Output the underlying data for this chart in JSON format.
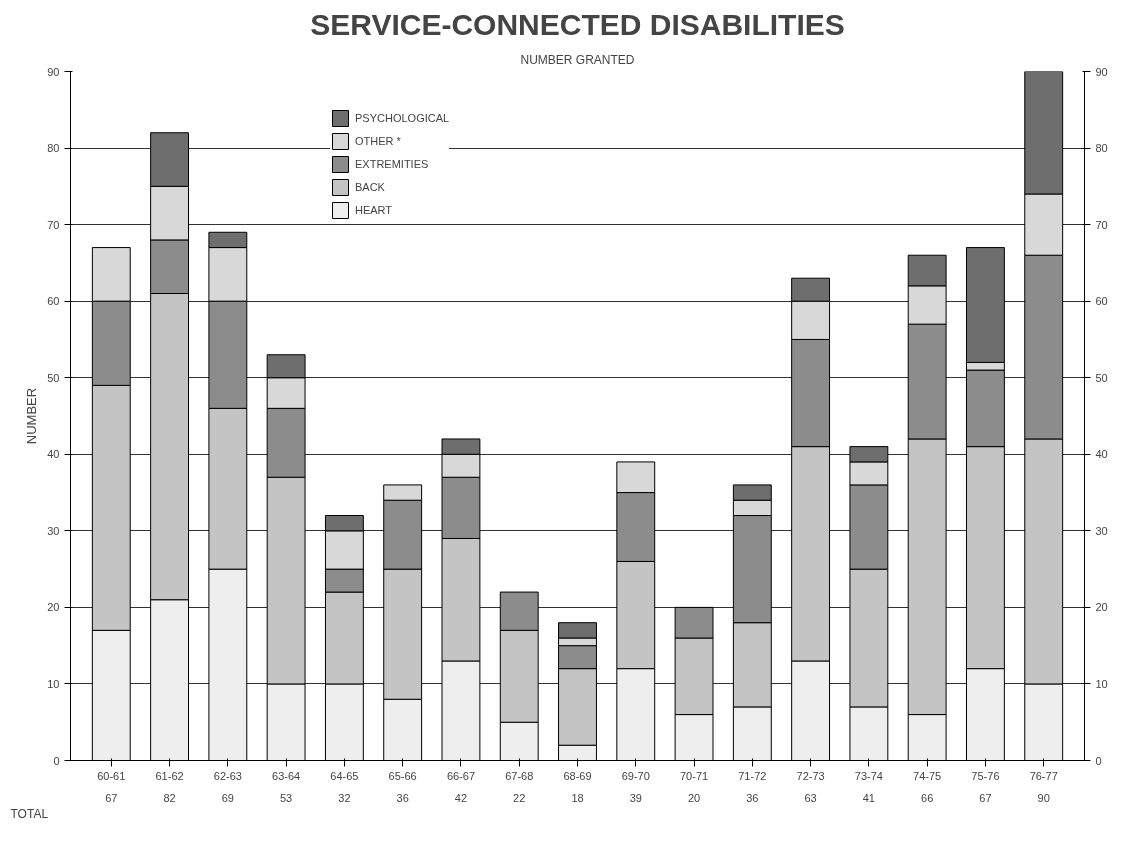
{
  "chart_data": {
    "type": "bar",
    "stacked": true,
    "title": "SERVICE-CONNECTED DISABILITIES",
    "subtitle": "NUMBER GRANTED",
    "ylabel": "NUMBER",
    "categories": [
      "60-61",
      "61-62",
      "62-63",
      "63-64",
      "64-65",
      "65-66",
      "66-67",
      "67-68",
      "68-69",
      "69-70",
      "70-71",
      "71-72",
      "72-73",
      "73-74",
      "74-75",
      "75-76",
      "76-77"
    ],
    "series": [
      {
        "name": "HEART",
        "color": "#eeeeee",
        "values": [
          17,
          21,
          25,
          10,
          10,
          8,
          13,
          5,
          2,
          12,
          6,
          7,
          13,
          7,
          6,
          12,
          10
        ]
      },
      {
        "name": "BACK",
        "color": "#c4c4c4",
        "values": [
          32,
          40,
          21,
          27,
          12,
          17,
          16,
          12,
          10,
          14,
          10,
          11,
          28,
          18,
          36,
          29,
          32
        ]
      },
      {
        "name": "EXTREMITIES",
        "color": "#8c8c8c",
        "values": [
          11,
          7,
          14,
          9,
          3,
          9,
          8,
          5,
          3,
          9,
          4,
          14,
          14,
          11,
          15,
          10,
          24
        ]
      },
      {
        "name": "OTHER *",
        "color": "#d8d8d8",
        "values": [
          7,
          7,
          7,
          4,
          5,
          2,
          3,
          0,
          1,
          4,
          0,
          2,
          5,
          3,
          5,
          1,
          8
        ]
      },
      {
        "name": "PSYCHOLOGICAL",
        "color": "#6e6e6e",
        "values": [
          0,
          7,
          2,
          3,
          2,
          0,
          2,
          0,
          2,
          0,
          0,
          2,
          3,
          2,
          4,
          15,
          16
        ]
      }
    ],
    "totals": [
      "67",
      "82",
      "69",
      "53",
      "32",
      "36",
      "42",
      "22",
      "18",
      "39",
      "20",
      "36",
      "63",
      "41",
      "66",
      "67",
      "90"
    ],
    "annotations": [
      "TOTAL"
    ],
    "ylim": [
      0,
      90
    ],
    "yticks": [
      0,
      10,
      20,
      30,
      40,
      50,
      60,
      70,
      80,
      90
    ],
    "y2lim": [
      0,
      90
    ],
    "y2ticks": [
      0,
      10,
      20,
      30,
      40,
      50,
      60,
      70,
      80,
      90
    ],
    "grid": "y",
    "legend": "top left"
  }
}
